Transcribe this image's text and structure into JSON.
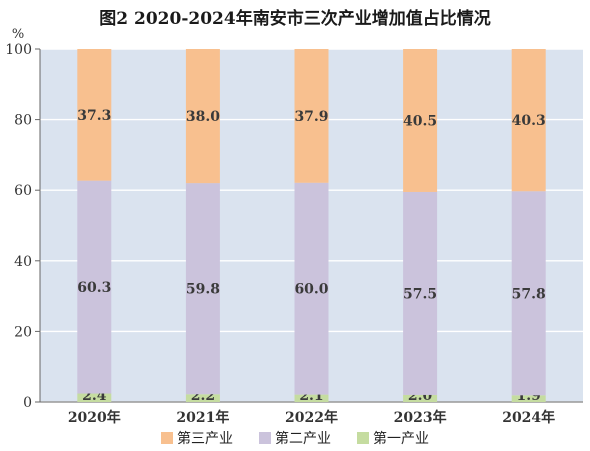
{
  "chart_data": {
    "type": "bar",
    "stacked": true,
    "title": "图2  2020-2024年南安市三次产业增加值占比情况",
    "ylabel": "%",
    "ylim": [
      0,
      100
    ],
    "yticks": [
      "0",
      "20",
      "40",
      "60",
      "80",
      "100"
    ],
    "grid": true,
    "legend_position": "bottom",
    "categories": [
      "2020年",
      "2021年",
      "2022年",
      "2023年",
      "2024年"
    ],
    "series": [
      {
        "name": "第一产业",
        "color": "#c5dca0",
        "values": [
          2.4,
          2.2,
          2.1,
          2.0,
          1.9
        ],
        "labels": [
          "2.4",
          "2.2",
          "2.1",
          "2.0",
          "1.9"
        ]
      },
      {
        "name": "第二产业",
        "color": "#cbc3dc",
        "values": [
          60.3,
          59.8,
          60.0,
          57.5,
          57.8
        ],
        "labels": [
          "60.3",
          "59.8",
          "60.0",
          "57.5",
          "57.8"
        ]
      },
      {
        "name": "第三产业",
        "color": "#f8c08f",
        "values": [
          37.3,
          38.0,
          37.9,
          40.5,
          40.3
        ],
        "labels": [
          "37.3",
          "38.0",
          "37.9",
          "40.5",
          "40.3"
        ]
      }
    ],
    "legend_order": [
      "第三产业",
      "第二产业",
      "第一产业"
    ],
    "plot_background": "#dae3ef"
  }
}
